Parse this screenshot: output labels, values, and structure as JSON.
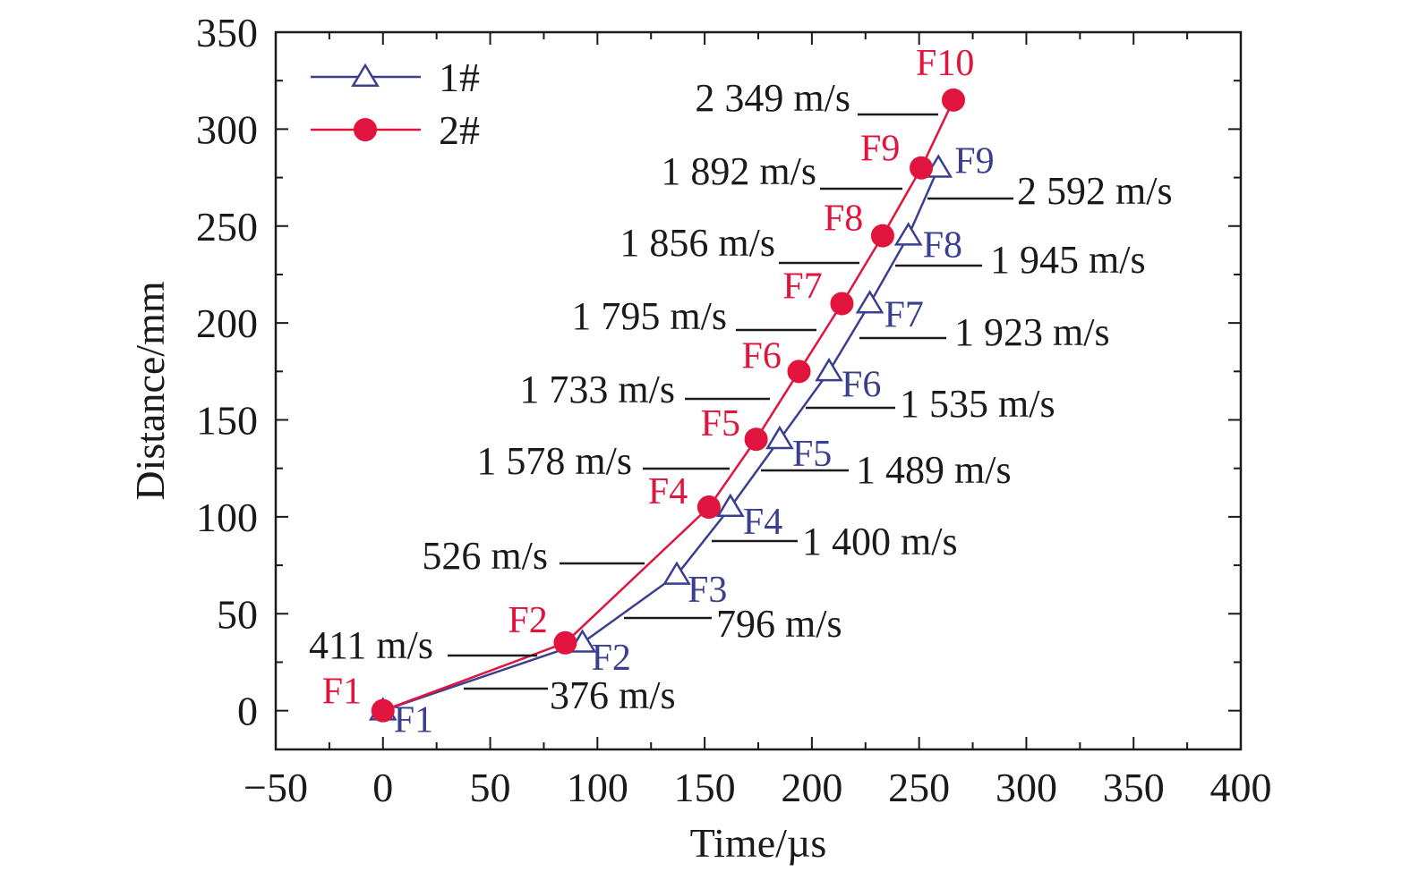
{
  "chart_data": {
    "type": "line",
    "xlabel": "Time/µs",
    "ylabel": "Distance/mm",
    "xlim": [
      -50,
      400
    ],
    "ylim": [
      -20,
      350
    ],
    "xticks": [
      "−50",
      "0",
      "50",
      "100",
      "150",
      "200",
      "250",
      "300",
      "350",
      "400"
    ],
    "xtick_values": [
      -50,
      0,
      50,
      100,
      150,
      200,
      250,
      300,
      350,
      400
    ],
    "yticks": [
      "0",
      "50",
      "100",
      "150",
      "200",
      "250",
      "300",
      "350"
    ],
    "ytick_values": [
      0,
      50,
      100,
      150,
      200,
      250,
      300,
      350
    ],
    "grid": false,
    "legend_position": "top-left",
    "series": [
      {
        "name": "1#",
        "color": "#3b3f8f",
        "marker": "open-triangle",
        "x": [
          0,
          93,
          137,
          162,
          185,
          208,
          227,
          245,
          259
        ],
        "y": [
          0,
          35,
          70,
          105,
          140,
          175,
          210,
          245,
          280
        ],
        "point_labels": [
          "F1",
          "F2",
          "F3",
          "F4",
          "F5",
          "F6",
          "F7",
          "F8",
          "F9"
        ]
      },
      {
        "name": "2#",
        "color": "#e0143c",
        "marker": "filled-circle",
        "x": [
          0,
          85,
          152,
          174,
          194,
          214,
          233,
          251,
          266
        ],
        "y": [
          0,
          35,
          105,
          140,
          175,
          210,
          245,
          280,
          315
        ],
        "point_labels": [
          "F1",
          "F2",
          "F4",
          "F5",
          "F6",
          "F7",
          "F8",
          "F9",
          "F10"
        ]
      }
    ],
    "annotations": [
      "411 m/s",
      "526 m/s",
      "1 578 m/s",
      "1 733 m/s",
      "1 795 m/s",
      "1 856 m/s",
      "1 892 m/s",
      "2 349 m/s",
      "376 m/s",
      "796 m/s",
      "1 400 m/s",
      "1 489 m/s",
      "1 535 m/s",
      "1 923 m/s",
      "1 945 m/s",
      "2 592 m/s"
    ]
  }
}
